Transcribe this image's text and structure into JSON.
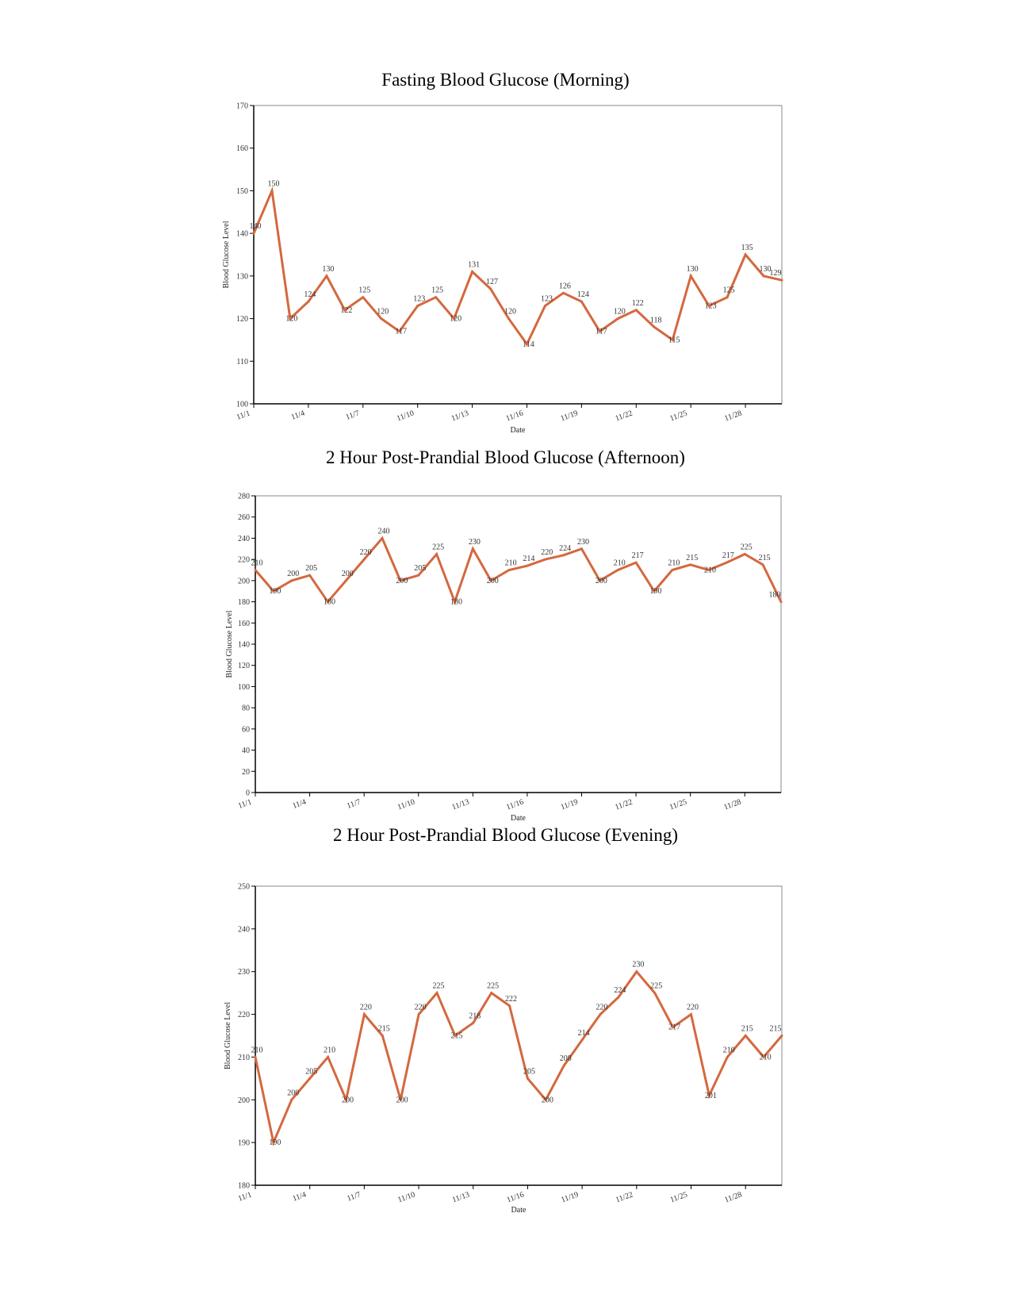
{
  "series_color": "#d4683f",
  "chart_data": [
    {
      "type": "line",
      "title": "Fasting Blood Glucose (Morning)",
      "xlabel": "Date",
      "ylabel": "Blood Glucose Level",
      "x": [
        "11/1",
        "11/2",
        "11/3",
        "11/4",
        "11/5",
        "11/6",
        "11/7",
        "11/8",
        "11/9",
        "11/10",
        "11/11",
        "11/12",
        "11/13",
        "11/14",
        "11/15",
        "11/16",
        "11/17",
        "11/18",
        "11/19",
        "11/20",
        "11/21",
        "11/22",
        "11/23",
        "11/24",
        "11/25",
        "11/26",
        "11/27",
        "11/28",
        "11/29",
        "11/30"
      ],
      "x_tick_labels": [
        "11/1",
        "11/4",
        "11/7",
        "11/10",
        "11/13",
        "11/16",
        "11/19",
        "11/22",
        "11/25",
        "11/28"
      ],
      "values": [
        140,
        150,
        120,
        124,
        130,
        122,
        125,
        120,
        117,
        123,
        125,
        120,
        131,
        127,
        120,
        114,
        123,
        126,
        124,
        117,
        120,
        122,
        118,
        115,
        130,
        123,
        125,
        135,
        130,
        129
      ],
      "ylim": [
        100,
        170
      ],
      "yticks": [
        100,
        110,
        120,
        130,
        140,
        150,
        160,
        170
      ],
      "grid": false
    },
    {
      "type": "line",
      "title": "2 Hour Post-Prandial Blood Glucose (Afternoon)",
      "xlabel": "Date",
      "ylabel": "Blood Glucose Level",
      "x": [
        "11/1",
        "11/2",
        "11/3",
        "11/4",
        "11/5",
        "11/6",
        "11/7",
        "11/8",
        "11/9",
        "11/10",
        "11/11",
        "11/12",
        "11/13",
        "11/14",
        "11/15",
        "11/16",
        "11/17",
        "11/18",
        "11/19",
        "11/20",
        "11/21",
        "11/22",
        "11/23",
        "11/24",
        "11/25",
        "11/26",
        "11/27",
        "11/28",
        "11/29",
        "11/30"
      ],
      "x_tick_labels": [
        "11/1",
        "11/4",
        "11/7",
        "11/10",
        "11/13",
        "11/16",
        "11/19",
        "11/22",
        "11/25",
        "11/28"
      ],
      "values": [
        210,
        190,
        200,
        205,
        180,
        200,
        220,
        240,
        200,
        205,
        225,
        180,
        230,
        200,
        210,
        214,
        220,
        224,
        230,
        200,
        210,
        217,
        190,
        210,
        215,
        210,
        217,
        225,
        215,
        180
      ],
      "ylim": [
        0,
        280
      ],
      "yticks": [
        0,
        20,
        40,
        60,
        80,
        100,
        120,
        140,
        160,
        180,
        200,
        220,
        240,
        260,
        280
      ],
      "grid": false
    },
    {
      "type": "line",
      "title": "2 Hour Post-Prandial Blood Glucose (Evening)",
      "xlabel": "Date",
      "ylabel": "Blood Glucose Level",
      "x": [
        "11/1",
        "11/2",
        "11/3",
        "11/4",
        "11/5",
        "11/6",
        "11/7",
        "11/8",
        "11/9",
        "11/10",
        "11/11",
        "11/12",
        "11/13",
        "11/14",
        "11/15",
        "11/16",
        "11/17",
        "11/18",
        "11/19",
        "11/20",
        "11/21",
        "11/22",
        "11/23",
        "11/24",
        "11/25",
        "11/26",
        "11/27",
        "11/28",
        "11/29",
        "11/30"
      ],
      "x_tick_labels": [
        "11/1",
        "11/4",
        "11/7",
        "11/10",
        "11/13",
        "11/16",
        "11/19",
        "11/22",
        "11/25",
        "11/28"
      ],
      "values": [
        210,
        190,
        200,
        205,
        210,
        200,
        220,
        215,
        200,
        220,
        225,
        215,
        218,
        225,
        222,
        205,
        200,
        208,
        214,
        220,
        224,
        230,
        225,
        217,
        220,
        201,
        210,
        215,
        210,
        215
      ],
      "ylim": [
        180,
        250
      ],
      "yticks": [
        180,
        190,
        200,
        210,
        220,
        230,
        240,
        250
      ],
      "grid": false
    }
  ]
}
